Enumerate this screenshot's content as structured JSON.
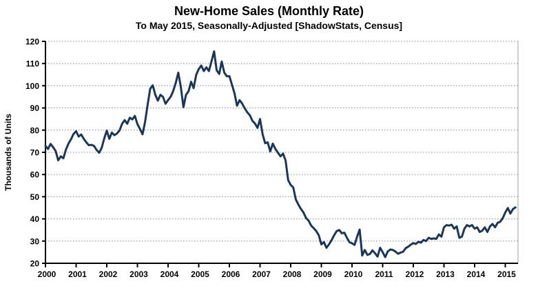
{
  "title": "New-Home Sales (Monthly Rate)",
  "subtitle": "To May 2015, Seasonally-Adjusted [ShadowStats, Census]",
  "colors": {
    "line": "#17375E",
    "grid": "#898989",
    "axis": "#000000",
    "plot_border": "#A6A6A6"
  },
  "chart_data": {
    "type": "line",
    "title": "New-Home Sales (Monthly Rate)",
    "subtitle": "To May 2015, Seasonally-Adjusted [ShadowStats, Census]",
    "xlabel": "",
    "ylabel": "Thousands of Units",
    "ylim": [
      20,
      120
    ],
    "y_ticks": [
      20,
      30,
      40,
      50,
      60,
      70,
      80,
      90,
      100,
      110,
      120
    ],
    "x_ticks": [
      "2000",
      "2001",
      "2002",
      "2003",
      "2004",
      "2005",
      "2006",
      "2007",
      "2008",
      "2009",
      "2010",
      "2011",
      "2012",
      "2013",
      "2014",
      "2015"
    ],
    "grid": "horizontal-dotted",
    "legend": "none",
    "series_name": "New-home sales, monthly rate (thousands of units)",
    "frequency": "monthly",
    "start": "2000-01",
    "end": "2015-05",
    "values": [
      72.9,
      71.5,
      73.8,
      72.3,
      70.6,
      66.4,
      68.2,
      67.3,
      71.2,
      73.9,
      75.9,
      78.3,
      79.5,
      77.1,
      78.0,
      76.1,
      74.5,
      73.2,
      73.4,
      72.9,
      71.1,
      69.8,
      72.0,
      76.2,
      79.8,
      76.1,
      78.9,
      77.7,
      78.5,
      79.8,
      82.9,
      84.5,
      82.9,
      85.6,
      84.8,
      86.4,
      82.7,
      80.5,
      78.1,
      83.7,
      91.4,
      98.6,
      100.2,
      95.9,
      93.3,
      95.9,
      95.0,
      91.9,
      93.5,
      95.0,
      97.6,
      101.2,
      105.9,
      99.5,
      90.3,
      95.9,
      97.5,
      101.8,
      98.9,
      104.9,
      107.5,
      109.1,
      106.6,
      108.3,
      106.6,
      111.0,
      115.5,
      107.0,
      105.3,
      110.9,
      105.9,
      104.3,
      104.3,
      100.5,
      96.6,
      91.0,
      93.5,
      92.0,
      89.8,
      88.0,
      86.7,
      84.2,
      83.0,
      81.0,
      85.0,
      78.2,
      74.1,
      74.5,
      70.4,
      73.9,
      71.5,
      69.8,
      68.2,
      69.4,
      66.3,
      57.5,
      55.3,
      54.2,
      48.8,
      46.5,
      44.5,
      42.9,
      40.4,
      39.2,
      37.0,
      35.8,
      34.5,
      32.6,
      28.5,
      29.6,
      27.0,
      28.5,
      30.4,
      32.6,
      34.5,
      35.0,
      33.5,
      33.8,
      31.5,
      29.5,
      29.0,
      28.3,
      32.0,
      35.2,
      23.5,
      26.0,
      23.8,
      24.2,
      25.8,
      24.5,
      23.0,
      27.0,
      25.0,
      22.8,
      25.3,
      26.2,
      26.0,
      25.3,
      24.3,
      24.8,
      25.2,
      26.8,
      27.5,
      28.4,
      29.1,
      28.7,
      29.7,
      29.3,
      30.5,
      30.0,
      31.5,
      31.0,
      31.2,
      31.0,
      33.0,
      32.0,
      36.2,
      37.2,
      37.0,
      37.4,
      35.6,
      36.6,
      31.5,
      32.0,
      35.6,
      37.2,
      36.6,
      37.2,
      35.6,
      36.2,
      34.1,
      34.7,
      36.2,
      34.1,
      36.6,
      37.7,
      36.2,
      38.2,
      38.7,
      40.3,
      42.9,
      44.9,
      42.4,
      44.4,
      45.2
    ]
  }
}
